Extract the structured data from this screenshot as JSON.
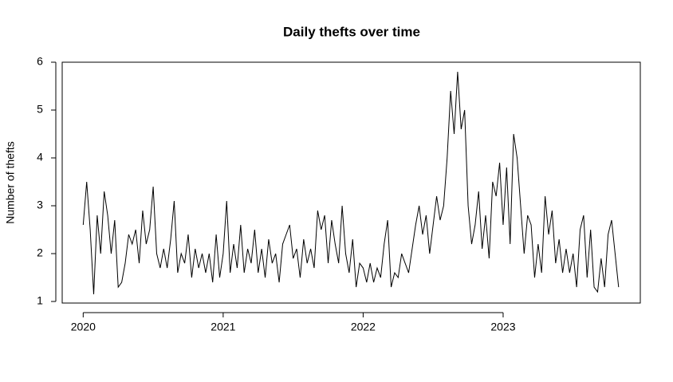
{
  "chart_data": {
    "type": "line",
    "title": "Daily thefts over time",
    "y_label": "Number of thefts",
    "color": "#000000",
    "xlim": [
      2019.85,
      2023.98
    ],
    "xticks": [
      2020,
      2021,
      2022,
      2023
    ],
    "ylim": [
      0.967,
      6
    ],
    "yticks": [
      1,
      2,
      3,
      4,
      5,
      6
    ],
    "x": [
      2020.0,
      2020.025,
      2020.05,
      2020.075,
      2020.1,
      2020.125,
      2020.15,
      2020.175,
      2020.2,
      2020.225,
      2020.25,
      2020.275,
      2020.3,
      2020.325,
      2020.35,
      2020.375,
      2020.4,
      2020.425,
      2020.45,
      2020.475,
      2020.5,
      2020.525,
      2020.55,
      2020.575,
      2020.6,
      2020.625,
      2020.65,
      2020.675,
      2020.7,
      2020.725,
      2020.75,
      2020.775,
      2020.8,
      2020.825,
      2020.85,
      2020.875,
      2020.9,
      2020.925,
      2020.95,
      2020.975,
      2021.0,
      2021.025,
      2021.05,
      2021.075,
      2021.1,
      2021.125,
      2021.15,
      2021.175,
      2021.2,
      2021.225,
      2021.25,
      2021.275,
      2021.3,
      2021.325,
      2021.35,
      2021.375,
      2021.4,
      2021.425,
      2021.45,
      2021.475,
      2021.5,
      2021.525,
      2021.55,
      2021.575,
      2021.6,
      2021.625,
      2021.65,
      2021.675,
      2021.7,
      2021.725,
      2021.75,
      2021.775,
      2021.8,
      2021.825,
      2021.85,
      2021.875,
      2021.9,
      2021.925,
      2021.95,
      2021.975,
      2022.0,
      2022.025,
      2022.05,
      2022.075,
      2022.1,
      2022.125,
      2022.15,
      2022.175,
      2022.2,
      2022.225,
      2022.25,
      2022.275,
      2022.3,
      2022.325,
      2022.35,
      2022.375,
      2022.4,
      2022.425,
      2022.45,
      2022.475,
      2022.5,
      2022.525,
      2022.55,
      2022.575,
      2022.6,
      2022.625,
      2022.65,
      2022.675,
      2022.7,
      2022.725,
      2022.75,
      2022.775,
      2022.8,
      2022.825,
      2022.85,
      2022.875,
      2022.9,
      2022.925,
      2022.95,
      2022.975,
      2023.0,
      2023.025,
      2023.05,
      2023.075,
      2023.1,
      2023.125,
      2023.15,
      2023.175,
      2023.2,
      2023.225,
      2023.25,
      2023.275,
      2023.3,
      2023.325,
      2023.35,
      2023.375,
      2023.4,
      2023.425,
      2023.45,
      2023.475,
      2023.5,
      2023.525,
      2023.55,
      2023.575,
      2023.6,
      2023.625,
      2023.65,
      2023.675,
      2023.7,
      2023.725,
      2023.75,
      2023.775,
      2023.8,
      2023.825
    ],
    "values": [
      2.6,
      3.5,
      2.5,
      1.15,
      2.8,
      2.0,
      3.3,
      2.8,
      2.0,
      2.7,
      1.3,
      1.4,
      1.8,
      2.4,
      2.2,
      2.5,
      1.8,
      2.9,
      2.2,
      2.5,
      3.4,
      2.0,
      1.7,
      2.1,
      1.7,
      2.3,
      3.1,
      1.6,
      2.0,
      1.8,
      2.4,
      1.5,
      2.1,
      1.7,
      2.0,
      1.6,
      2.0,
      1.4,
      2.4,
      1.5,
      2.0,
      3.1,
      1.6,
      2.2,
      1.7,
      2.6,
      1.6,
      2.1,
      1.8,
      2.5,
      1.6,
      2.1,
      1.5,
      2.3,
      1.8,
      2.0,
      1.4,
      2.2,
      2.4,
      2.6,
      1.9,
      2.1,
      1.5,
      2.3,
      1.8,
      2.1,
      1.7,
      2.9,
      2.5,
      2.8,
      1.8,
      2.7,
      2.2,
      1.8,
      3.0,
      2.0,
      1.6,
      2.3,
      1.3,
      1.8,
      1.7,
      1.4,
      1.8,
      1.4,
      1.7,
      1.5,
      2.2,
      2.7,
      1.3,
      1.6,
      1.5,
      2.0,
      1.8,
      1.6,
      2.1,
      2.6,
      3.0,
      2.4,
      2.8,
      2.0,
      2.6,
      3.2,
      2.7,
      3.0,
      4.0,
      5.4,
      4.5,
      5.8,
      4.6,
      5.0,
      3.0,
      2.2,
      2.6,
      3.3,
      2.1,
      2.8,
      1.9,
      3.5,
      3.2,
      3.9,
      2.6,
      3.8,
      2.2,
      4.5,
      4.0,
      3.0,
      2.0,
      2.8,
      2.6,
      1.5,
      2.2,
      1.6,
      3.2,
      2.4,
      2.9,
      1.8,
      2.3,
      1.6,
      2.1,
      1.6,
      2.0,
      1.3,
      2.5,
      2.8,
      1.5,
      2.5,
      1.3,
      1.2,
      1.9,
      1.3,
      2.4,
      2.7,
      2.0,
      1.3
    ]
  }
}
